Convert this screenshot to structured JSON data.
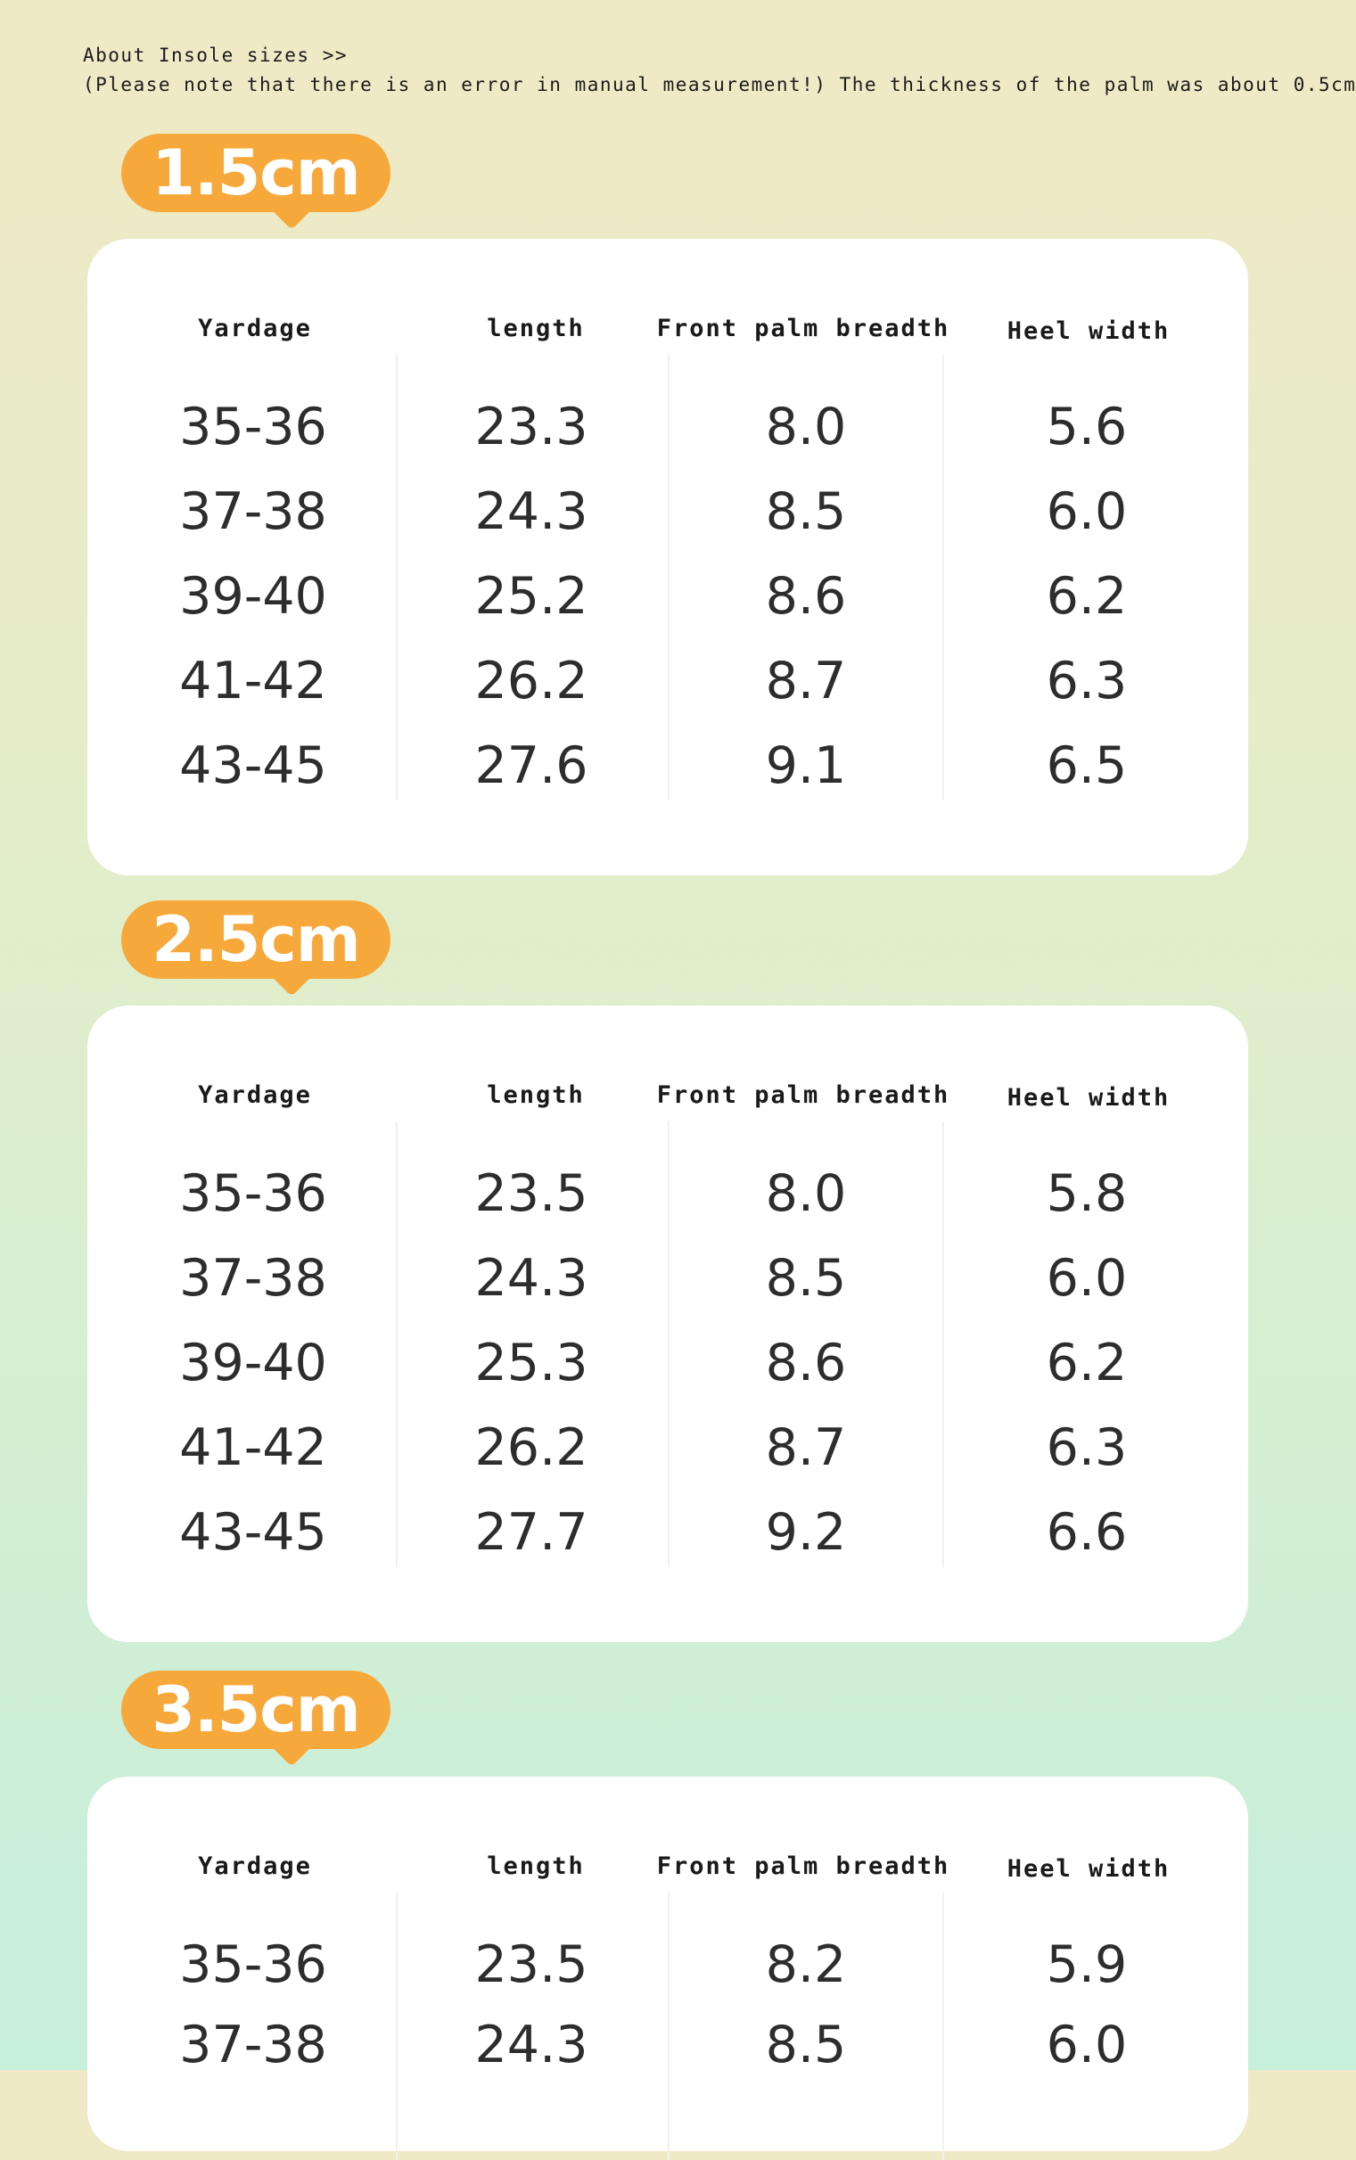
{
  "intro": {
    "line1": "About Insole sizes >>",
    "line2": "(Please note that there is an error in manual measurement!) The thickness of the palm was about 0.5cm"
  },
  "headers": [
    "Yardage",
    "length",
    "Front palm breadth",
    "Heel width"
  ],
  "colors": {
    "badge": "#f7a83a",
    "card": "#ffffff",
    "text": "#2d2d2d"
  },
  "sections": [
    {
      "badge": "1.5cm",
      "rows": [
        [
          "35-36",
          "23.3",
          "8.0",
          "5.6"
        ],
        [
          "37-38",
          "24.3",
          "8.5",
          "6.0"
        ],
        [
          "39-40",
          "25.2",
          "8.6",
          "6.2"
        ],
        [
          "41-42",
          "26.2",
          "8.7",
          "6.3"
        ],
        [
          "43-45",
          "27.6",
          "9.1",
          "6.5"
        ]
      ]
    },
    {
      "badge": "2.5cm",
      "rows": [
        [
          "35-36",
          "23.5",
          "8.0",
          "5.8"
        ],
        [
          "37-38",
          "24.3",
          "8.5",
          "6.0"
        ],
        [
          "39-40",
          "25.3",
          "8.6",
          "6.2"
        ],
        [
          "41-42",
          "26.2",
          "8.7",
          "6.3"
        ],
        [
          "43-45",
          "27.7",
          "9.2",
          "6.6"
        ]
      ]
    },
    {
      "badge": "3.5cm",
      "rows": [
        [
          "35-36",
          "23.5",
          "8.2",
          "5.9"
        ],
        [
          "37-38",
          "24.3",
          "8.5",
          "6.0"
        ]
      ]
    }
  ]
}
